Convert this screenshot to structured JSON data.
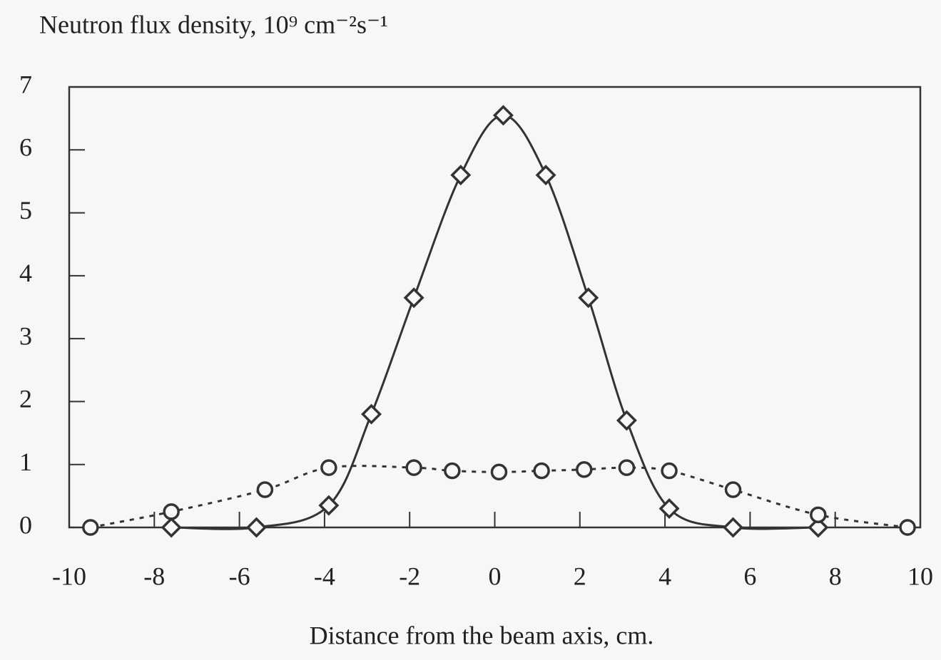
{
  "chart_data": {
    "type": "line",
    "title": "Neutron flux density, 10⁹ cm⁻²s⁻¹",
    "x_label": "Distance from the beam axis, cm.",
    "xlim": [
      -10,
      10
    ],
    "xticks": [
      -10,
      -8,
      -6,
      -4,
      -2,
      0,
      2,
      4,
      6,
      8,
      10
    ],
    "ylim": [
      0,
      7
    ],
    "yticks": [
      0,
      1,
      2,
      3,
      4,
      5,
      6,
      7
    ],
    "grid": false,
    "series": [
      {
        "color": "#333333",
        "marker": "diamond",
        "linestyle": "solid",
        "smooth": true,
        "x": [
          -7.6,
          -5.6,
          -3.9,
          -2.9,
          -1.9,
          -0.8,
          0.2,
          1.2,
          2.2,
          3.1,
          4.1,
          5.6,
          7.6
        ],
        "values": [
          0,
          0,
          0.35,
          1.8,
          3.65,
          5.6,
          6.55,
          5.6,
          3.65,
          1.7,
          0.3,
          0,
          0
        ]
      },
      {
        "color": "#333333",
        "marker": "circle",
        "linestyle": "dotted",
        "smooth": true,
        "x": [
          -9.5,
          -7.6,
          -5.4,
          -3.9,
          -1.9,
          -1.0,
          0.1,
          1.1,
          2.1,
          3.1,
          4.1,
          5.6,
          7.6,
          9.7
        ],
        "values": [
          0,
          0.25,
          0.6,
          0.95,
          0.95,
          0.9,
          0.88,
          0.9,
          0.92,
          0.95,
          0.9,
          0.6,
          0.2,
          0
        ]
      }
    ]
  }
}
